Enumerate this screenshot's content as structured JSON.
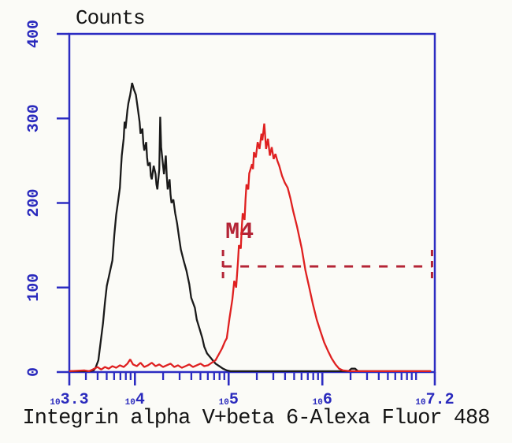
{
  "figure": {
    "title": "Counts",
    "x_axis_label": "Integrin alpha V+beta 6-Alexa Fluor 488"
  },
  "colors": {
    "axis": "#2c2cc2",
    "axis_text": "#2a2abd",
    "title_text": "#141414",
    "black_curve": "#1a1a1a",
    "red_curve": "#df2020",
    "marker": "#b42436",
    "background": "#fbfbf7"
  },
  "chart_data": {
    "type": "line",
    "subtype": "flow-cytometry-histogram-overlay",
    "title": "Counts",
    "xlabel": "Integrin alpha V+beta 6-Alexa Fluor 488",
    "ylabel": "Counts",
    "grid": false,
    "legend": "none",
    "x_scale": "log10",
    "xlim_log10": [
      3.3,
      7.2
    ],
    "ylim": [
      0,
      400
    ],
    "y_ticks": [
      0,
      100,
      200,
      300,
      400
    ],
    "x_major_ticks": [
      {
        "log10": 3.3,
        "base": "10",
        "exp": "3.3"
      },
      {
        "log10": 4.0,
        "base": "10",
        "exp": "4"
      },
      {
        "log10": 5.0,
        "base": "10",
        "exp": "5"
      },
      {
        "log10": 6.0,
        "base": "10",
        "exp": "6"
      },
      {
        "log10": 7.2,
        "base": "10",
        "exp": "7.2"
      }
    ],
    "x_minor_ticks_log10": [
      3.477,
      3.602,
      3.699,
      3.778,
      3.845,
      3.903,
      3.954,
      4.301,
      4.477,
      4.602,
      4.699,
      4.778,
      4.845,
      4.903,
      4.954,
      5.301,
      5.477,
      5.602,
      5.699,
      5.778,
      5.845,
      5.903,
      5.954,
      6.301,
      6.477,
      6.602,
      6.699,
      6.778,
      6.845,
      6.903,
      6.954,
      7.0
    ],
    "series": [
      {
        "name": "black-histogram",
        "color": "#1a1a1a",
        "points": [
          [
            3.3,
            1
          ],
          [
            3.52,
            1
          ],
          [
            3.56,
            2
          ],
          [
            3.58,
            5
          ],
          [
            3.61,
            14
          ],
          [
            3.63,
            32
          ],
          [
            3.66,
            58
          ],
          [
            3.68,
            82
          ],
          [
            3.7,
            102
          ],
          [
            3.72,
            112
          ],
          [
            3.74,
            122
          ],
          [
            3.76,
            132
          ],
          [
            3.78,
            162
          ],
          [
            3.8,
            186
          ],
          [
            3.82,
            202
          ],
          [
            3.84,
            218
          ],
          [
            3.85,
            238
          ],
          [
            3.86,
            256
          ],
          [
            3.88,
            276
          ],
          [
            3.89,
            296
          ],
          [
            3.9,
            288
          ],
          [
            3.92,
            310
          ],
          [
            3.93,
            318
          ],
          [
            3.95,
            328
          ],
          [
            3.97,
            342
          ],
          [
            3.99,
            334
          ],
          [
            4.01,
            328
          ],
          [
            4.03,
            312
          ],
          [
            4.05,
            296
          ],
          [
            4.06,
            282
          ],
          [
            4.08,
            288
          ],
          [
            4.09,
            270
          ],
          [
            4.1,
            262
          ],
          [
            4.12,
            272
          ],
          [
            4.13,
            254
          ],
          [
            4.14,
            244
          ],
          [
            4.16,
            248
          ],
          [
            4.17,
            232
          ],
          [
            4.18,
            228
          ],
          [
            4.2,
            244
          ],
          [
            4.22,
            234
          ],
          [
            4.23,
            222
          ],
          [
            4.24,
            216
          ],
          [
            4.26,
            240
          ],
          [
            4.27,
            302
          ],
          [
            4.28,
            266
          ],
          [
            4.3,
            244
          ],
          [
            4.31,
            234
          ],
          [
            4.33,
            256
          ],
          [
            4.34,
            232
          ],
          [
            4.35,
            216
          ],
          [
            4.37,
            228
          ],
          [
            4.38,
            210
          ],
          [
            4.39,
            200
          ],
          [
            4.41,
            204
          ],
          [
            4.43,
            188
          ],
          [
            4.45,
            176
          ],
          [
            4.47,
            160
          ],
          [
            4.49,
            145
          ],
          [
            4.52,
            132
          ],
          [
            4.55,
            120
          ],
          [
            4.58,
            104
          ],
          [
            4.6,
            88
          ],
          [
            4.64,
            76
          ],
          [
            4.66,
            62
          ],
          [
            4.69,
            51
          ],
          [
            4.72,
            40
          ],
          [
            4.74,
            30
          ],
          [
            4.77,
            22
          ],
          [
            4.8,
            18
          ],
          [
            4.83,
            14
          ],
          [
            4.86,
            10
          ],
          [
            4.9,
            7
          ],
          [
            4.94,
            4
          ],
          [
            4.98,
            2
          ],
          [
            5.02,
            1
          ],
          [
            6.28,
            1
          ],
          [
            6.31,
            4
          ],
          [
            6.35,
            4
          ],
          [
            6.38,
            1
          ],
          [
            7.16,
            1
          ]
        ]
      },
      {
        "name": "red-histogram",
        "color": "#df2020",
        "points": [
          [
            3.3,
            1
          ],
          [
            3.46,
            2
          ],
          [
            3.51,
            1
          ],
          [
            3.55,
            3
          ],
          [
            3.6,
            6
          ],
          [
            3.64,
            3
          ],
          [
            3.68,
            6
          ],
          [
            3.72,
            4
          ],
          [
            3.76,
            7
          ],
          [
            3.8,
            5
          ],
          [
            3.84,
            8
          ],
          [
            3.88,
            6
          ],
          [
            3.92,
            10
          ],
          [
            3.95,
            15
          ],
          [
            3.98,
            9
          ],
          [
            4.02,
            7
          ],
          [
            4.06,
            11
          ],
          [
            4.1,
            6
          ],
          [
            4.14,
            8
          ],
          [
            4.18,
            11
          ],
          [
            4.22,
            7
          ],
          [
            4.26,
            9
          ],
          [
            4.3,
            6
          ],
          [
            4.34,
            8
          ],
          [
            4.38,
            10
          ],
          [
            4.42,
            6
          ],
          [
            4.46,
            8
          ],
          [
            4.5,
            5
          ],
          [
            4.54,
            7
          ],
          [
            4.58,
            9
          ],
          [
            4.62,
            6
          ],
          [
            4.66,
            8
          ],
          [
            4.7,
            10
          ],
          [
            4.74,
            7
          ],
          [
            4.78,
            8
          ],
          [
            4.82,
            11
          ],
          [
            4.86,
            14
          ],
          [
            4.89,
            20
          ],
          [
            4.93,
            28
          ],
          [
            4.96,
            36
          ],
          [
            4.98,
            40
          ],
          [
            5.01,
            64
          ],
          [
            5.04,
            86
          ],
          [
            5.06,
            108
          ],
          [
            5.08,
            100
          ],
          [
            5.1,
            132
          ],
          [
            5.11,
            150
          ],
          [
            5.13,
            146
          ],
          [
            5.14,
            170
          ],
          [
            5.15,
            188
          ],
          [
            5.17,
            180
          ],
          [
            5.18,
            204
          ],
          [
            5.19,
            222
          ],
          [
            5.21,
            216
          ],
          [
            5.22,
            235
          ],
          [
            5.25,
            246
          ],
          [
            5.26,
            240
          ],
          [
            5.27,
            260
          ],
          [
            5.29,
            254
          ],
          [
            5.31,
            272
          ],
          [
            5.33,
            264
          ],
          [
            5.35,
            282
          ],
          [
            5.36,
            274
          ],
          [
            5.38,
            294
          ],
          [
            5.4,
            264
          ],
          [
            5.42,
            276
          ],
          [
            5.44,
            256
          ],
          [
            5.46,
            266
          ],
          [
            5.48,
            252
          ],
          [
            5.5,
            258
          ],
          [
            5.52,
            250
          ],
          [
            5.54,
            244
          ],
          [
            5.57,
            232
          ],
          [
            5.6,
            224
          ],
          [
            5.63,
            218
          ],
          [
            5.66,
            205
          ],
          [
            5.69,
            190
          ],
          [
            5.73,
            172
          ],
          [
            5.78,
            146
          ],
          [
            5.82,
            120
          ],
          [
            5.86,
            100
          ],
          [
            5.9,
            80
          ],
          [
            5.94,
            62
          ],
          [
            5.98,
            48
          ],
          [
            6.02,
            35
          ],
          [
            6.06,
            25
          ],
          [
            6.1,
            16
          ],
          [
            6.14,
            9
          ],
          [
            6.18,
            4
          ],
          [
            6.22,
            2
          ],
          [
            6.3,
            1
          ],
          [
            7.16,
            1
          ]
        ]
      }
    ],
    "marker": {
      "label": "M4",
      "y_value": 125,
      "x_start_log10": 4.94,
      "x_end_log10": 7.17,
      "color": "#b42436"
    }
  }
}
